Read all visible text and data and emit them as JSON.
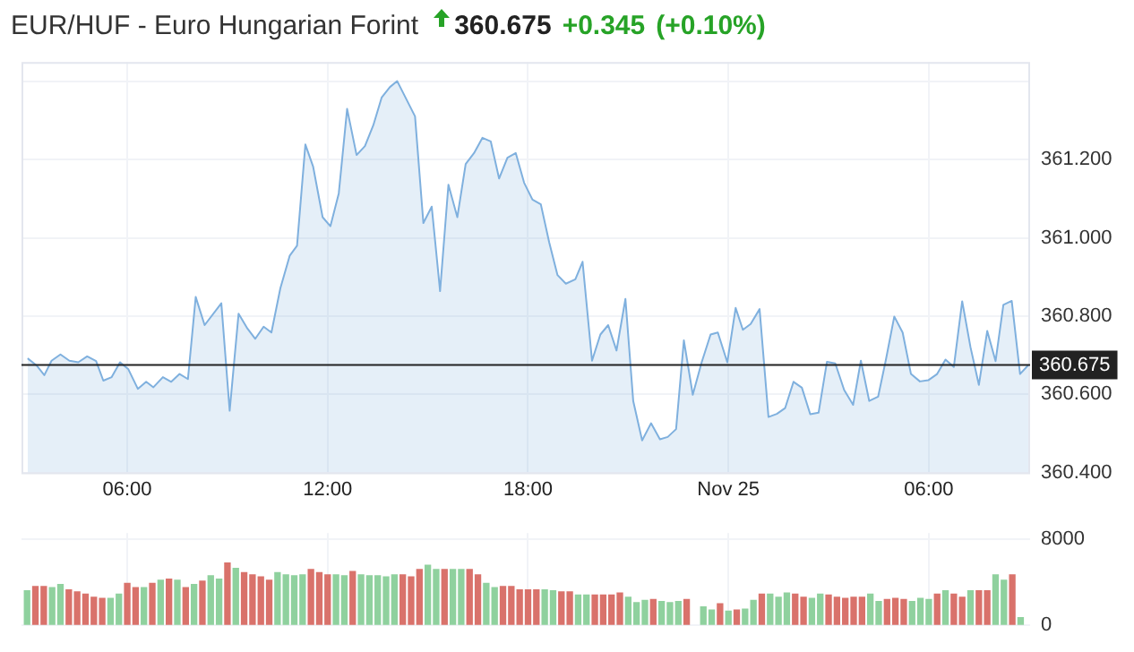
{
  "chart_data": [
    {
      "type": "area",
      "title": "EUR/HUF - Euro Hungarian Forint",
      "subtitle": "360.675",
      "annotations": [
        "+0.345",
        "(+0.10%)"
      ],
      "x": [
        "--11-24T03:01",
        "--11-24T03:17",
        "--11-24T03:31",
        "--11-24T03:44",
        "--11-24T04:00",
        "--11-24T04:16",
        "--11-24T04:32",
        "--11-24T04:48",
        "--11-24T05:04",
        "--11-24T05:17",
        "--11-24T05:32",
        "--11-24T05:47",
        "--11-24T06:02",
        "--11-24T06:19",
        "--11-24T06:34",
        "--11-24T06:47",
        "--11-24T07:04",
        "--11-24T07:19",
        "--11-24T07:34",
        "--11-24T07:49",
        "--11-24T08:03",
        "--11-24T08:19",
        "--11-24T08:49",
        "--11-24T09:04",
        "--11-24T09:20",
        "--11-24T09:36",
        "--11-24T09:50",
        "--11-24T10:05",
        "--11-24T10:19",
        "--11-24T10:35",
        "--11-24T10:52",
        "--11-24T11:05",
        "--11-24T11:20",
        "--11-24T11:34",
        "--11-24T11:51",
        "--11-24T12:05",
        "--11-24T12:20",
        "--11-24T12:35",
        "--11-24T12:52",
        "--11-24T13:07",
        "--11-24T13:22",
        "--11-24T13:37",
        "--11-24T13:52",
        "--11-24T14:05",
        "--11-24T14:37",
        "--11-24T14:52",
        "--11-24T15:07",
        "--11-24T15:22",
        "--11-24T15:37",
        "--11-24T15:53",
        "--11-24T16:08",
        "--11-24T16:23",
        "--11-24T16:38",
        "--11-24T16:53",
        "--11-24T17:08",
        "--11-24T17:23",
        "--11-24T17:38",
        "--11-24T17:53",
        "--11-24T18:08",
        "--11-24T18:23",
        "--11-24T18:38",
        "--11-24T18:53",
        "--11-24T19:08",
        "--11-24T19:25",
        "--11-24T19:38",
        "--11-24T19:55",
        "--11-24T20:10",
        "--11-24T20:24",
        "--11-24T20:39",
        "--11-24T20:55",
        "--11-24T21:09",
        "--11-24T21:25",
        "--11-24T21:41",
        "--11-24T21:57",
        "--11-24T22:11",
        "--11-24T22:26",
        "--11-24T22:40",
        "--11-24T22:56",
        "--11-24T23:12",
        "--11-24T23:28",
        "--11-24T23:41",
        "--11-24T23:58",
        "--11-25T00:13",
        "--11-25T00:26",
        "--11-25T00:40",
        "--11-25T00:56",
        "--11-25T01:12",
        "--11-25T01:27",
        "--11-25T01:42",
        "--11-25T01:57",
        "--11-25T02:12",
        "--11-25T02:27",
        "--11-25T02:42",
        "--11-25T02:57",
        "--11-25T03:12",
        "--11-25T03:28",
        "--11-25T03:44",
        "--11-25T03:58",
        "--11-25T04:13",
        "--11-25T04:29",
        "--11-25T04:43",
        "--11-25T04:58",
        "--11-25T05:13",
        "--11-25T05:28",
        "--11-25T05:44",
        "--11-25T05:59",
        "--11-25T06:15",
        "--11-25T06:30",
        "--11-25T06:45",
        "--11-25T07:00",
        "--11-25T07:15",
        "--11-25T07:30",
        "--11-25T07:45",
        "--11-25T08:00",
        "--11-25T08:14",
        "--11-25T08:29",
        "--11-25T08:44",
        "--11-25T08:59"
      ],
      "series": [
        {
          "color": "#7fb0de",
          "values": [
            360.692,
            360.674,
            360.649,
            360.686,
            360.702,
            360.686,
            360.682,
            360.697,
            360.685,
            360.635,
            360.644,
            360.682,
            360.664,
            360.614,
            360.632,
            360.618,
            360.644,
            360.632,
            360.652,
            360.639,
            360.849,
            360.777,
            360.833,
            360.558,
            360.806,
            360.768,
            360.742,
            360.773,
            360.758,
            360.871,
            360.955,
            360.98,
            361.239,
            361.182,
            361.053,
            361.03,
            361.114,
            361.33,
            361.212,
            361.235,
            361.288,
            361.359,
            361.386,
            361.401,
            361.311,
            361.038,
            361.08,
            360.864,
            361.136,
            361.053,
            361.189,
            361.217,
            361.256,
            361.247,
            361.152,
            361.205,
            361.217,
            361.141,
            361.098,
            361.086,
            360.989,
            360.905,
            360.883,
            360.894,
            360.939,
            360.686,
            360.753,
            360.777,
            360.712,
            360.844,
            360.583,
            360.482,
            360.526,
            360.485,
            360.491,
            360.511,
            360.738,
            360.599,
            360.682,
            360.753,
            360.758,
            360.682,
            360.821,
            360.765,
            360.78,
            360.818,
            360.542,
            360.55,
            360.565,
            360.632,
            360.617,
            360.549,
            360.553,
            360.683,
            360.679,
            360.611,
            360.573,
            360.686,
            360.583,
            360.594,
            360.689,
            360.799,
            360.758,
            360.652,
            360.633,
            360.636,
            360.652,
            360.689,
            360.67,
            360.838,
            360.72,
            360.624,
            360.762,
            360.685,
            360.829,
            360.839,
            360.652,
            360.675
          ]
        }
      ],
      "xlim": [
        "--11-24T02:50",
        "--11-25T09:02"
      ],
      "xticks": [
        {
          "value": "--11-24T06:00",
          "label": "06:00"
        },
        {
          "value": "--11-24T12:00",
          "label": "12:00"
        },
        {
          "value": "--11-24T18:00",
          "label": "18:00"
        },
        {
          "value": "--11-25T00:00",
          "label": "Nov 25"
        },
        {
          "value": "--11-25T06:00",
          "label": "06:00"
        }
      ],
      "ylim": [
        360.4,
        361.45
      ],
      "yticks": [
        {
          "value": 360.4,
          "label": "360.400"
        },
        {
          "value": 360.6,
          "label": "360.600"
        },
        {
          "value": 360.8,
          "label": "360.800"
        },
        {
          "value": 361.0,
          "label": "361.000"
        },
        {
          "value": 361.2,
          "label": "361.200"
        },
        {
          "value": 361.4,
          "label": null
        }
      ],
      "grid": true,
      "ref_lines": [
        {
          "axis": "y",
          "value": 360.675,
          "label": "360.675",
          "color": "#222222"
        }
      ]
    },
    {
      "type": "bar",
      "x": [
        "--11-24T03:00",
        "--11-24T03:15",
        "--11-24T03:30",
        "--11-24T03:45",
        "--11-24T04:00",
        "--11-24T04:15",
        "--11-24T04:30",
        "--11-24T04:45",
        "--11-24T05:00",
        "--11-24T05:15",
        "--11-24T05:30",
        "--11-24T05:45",
        "--11-24T06:00",
        "--11-24T06:15",
        "--11-24T06:30",
        "--11-24T06:45",
        "--11-24T07:00",
        "--11-24T07:15",
        "--11-24T07:30",
        "--11-24T07:45",
        "--11-24T08:00",
        "--11-24T08:15",
        "--11-24T08:30",
        "--11-24T08:45",
        "--11-24T09:00",
        "--11-24T09:15",
        "--11-24T09:30",
        "--11-24T09:45",
        "--11-24T10:00",
        "--11-24T10:15",
        "--11-24T10:30",
        "--11-24T10:45",
        "--11-24T11:00",
        "--11-24T11:15",
        "--11-24T11:30",
        "--11-24T11:45",
        "--11-24T12:00",
        "--11-24T12:15",
        "--11-24T12:30",
        "--11-24T12:45",
        "--11-24T13:00",
        "--11-24T13:15",
        "--11-24T13:30",
        "--11-24T13:45",
        "--11-24T14:00",
        "--11-24T14:15",
        "--11-24T14:30",
        "--11-24T14:45",
        "--11-24T15:00",
        "--11-24T15:15",
        "--11-24T15:30",
        "--11-24T15:45",
        "--11-24T16:00",
        "--11-24T16:15",
        "--11-24T16:30",
        "--11-24T16:45",
        "--11-24T17:00",
        "--11-24T17:15",
        "--11-24T17:30",
        "--11-24T17:45",
        "--11-24T18:00",
        "--11-24T18:15",
        "--11-24T18:30",
        "--11-24T18:45",
        "--11-24T19:00",
        "--11-24T19:15",
        "--11-24T19:30",
        "--11-24T19:45",
        "--11-24T20:00",
        "--11-24T20:15",
        "--11-24T20:30",
        "--11-24T20:45",
        "--11-24T21:00",
        "--11-24T21:15",
        "--11-24T21:30",
        "--11-24T21:45",
        "--11-24T22:00",
        "--11-24T22:15",
        "--11-24T22:30",
        "--11-24T22:45",
        "--11-24T23:00",
        "--11-24T23:15",
        "--11-24T23:30",
        "--11-24T23:45",
        "--11-25T00:00",
        "--11-25T00:15",
        "--11-25T00:30",
        "--11-25T00:45",
        "--11-25T01:00",
        "--11-25T01:15",
        "--11-25T01:30",
        "--11-25T01:45",
        "--11-25T02:00",
        "--11-25T02:15",
        "--11-25T02:30",
        "--11-25T02:45",
        "--11-25T03:00",
        "--11-25T03:15",
        "--11-25T03:30",
        "--11-25T03:45",
        "--11-25T04:00",
        "--11-25T04:15",
        "--11-25T04:30",
        "--11-25T04:45",
        "--11-25T05:00",
        "--11-25T05:15",
        "--11-25T05:30",
        "--11-25T05:45",
        "--11-25T06:00",
        "--11-25T06:15",
        "--11-25T06:30",
        "--11-25T06:45",
        "--11-25T07:00",
        "--11-25T07:15",
        "--11-25T07:30",
        "--11-25T07:45",
        "--11-25T08:00",
        "--11-25T08:15",
        "--11-25T08:30",
        "--11-25T08:45"
      ],
      "values": [
        3200,
        3600,
        3600,
        3500,
        3800,
        3300,
        3100,
        2900,
        2600,
        2500,
        2500,
        2900,
        3900,
        3500,
        3500,
        3900,
        4200,
        4300,
        4200,
        3500,
        3800,
        4100,
        4600,
        4300,
        5800,
        5300,
        4900,
        4700,
        4500,
        4200,
        4900,
        4700,
        4600,
        4700,
        5200,
        4900,
        4700,
        4700,
        4600,
        5000,
        4700,
        4600,
        4600,
        4500,
        4700,
        4700,
        4500,
        5200,
        5600,
        5200,
        5200,
        5200,
        5200,
        5200,
        4700,
        3900,
        3500,
        3600,
        3600,
        3300,
        3300,
        3300,
        3300,
        3200,
        3100,
        3100,
        2800,
        2800,
        2800,
        2800,
        2800,
        3000,
        2600,
        2100,
        2300,
        2400,
        2200,
        2100,
        2200,
        2400,
        null,
        1700,
        1400,
        2000,
        1300,
        1400,
        1500,
        2300,
        2900,
        2900,
        2600,
        3000,
        2900,
        2600,
        2500,
        2900,
        2800,
        2600,
        2500,
        2600,
        2600,
        2900,
        2200,
        2400,
        2500,
        2400,
        2200,
        2500,
        2400,
        2900,
        3200,
        2900,
        2600,
        3200,
        3200,
        3200,
        4700,
        4200,
        4700,
        700
      ],
      "colors": [
        "#8fd19e",
        "#d9726b",
        "#d9726b",
        "#8fd19e",
        "#8fd19e",
        "#d9726b",
        "#d9726b",
        "#d9726b",
        "#d9726b",
        "#d9726b",
        "#8fd19e",
        "#8fd19e",
        "#d9726b",
        "#d9726b",
        "#8fd19e",
        "#d9726b",
        "#8fd19e",
        "#d9726b",
        "#8fd19e",
        "#d9726b",
        "#8fd19e",
        "#d9726b",
        "#8fd19e",
        "#8fd19e",
        "#d9726b",
        "#8fd19e",
        "#d9726b",
        "#d9726b",
        "#d9726b",
        "#d9726b",
        "#8fd19e",
        "#8fd19e",
        "#8fd19e",
        "#8fd19e",
        "#d9726b",
        "#d9726b",
        "#d9726b",
        "#8fd19e",
        "#8fd19e",
        "#d9726b",
        "#8fd19e",
        "#8fd19e",
        "#8fd19e",
        "#8fd19e",
        "#8fd19e",
        "#d9726b",
        "#d9726b",
        "#d9726b",
        "#8fd19e",
        "#8fd19e",
        "#d9726b",
        "#8fd19e",
        "#8fd19e",
        "#d9726b",
        "#d9726b",
        "#8fd19e",
        "#8fd19e",
        "#d9726b",
        "#d9726b",
        "#d9726b",
        "#d9726b",
        "#d9726b",
        "#8fd19e",
        "#8fd19e",
        "#d9726b",
        "#d9726b",
        "#8fd19e",
        "#8fd19e",
        "#d9726b",
        "#d9726b",
        "#d9726b",
        "#d9726b",
        "#8fd19e",
        "#8fd19e",
        "#8fd19e",
        "#d9726b",
        "#8fd19e",
        "#8fd19e",
        "#8fd19e",
        "#d9726b",
        "#8fd19e",
        "#8fd19e",
        "#8fd19e",
        "#d9726b",
        "#8fd19e",
        "#d9726b",
        "#8fd19e",
        "#8fd19e",
        "#d9726b",
        "#8fd19e",
        "#8fd19e",
        "#8fd19e",
        "#d9726b",
        "#d9726b",
        "#8fd19e",
        "#8fd19e",
        "#d9726b",
        "#d9726b",
        "#d9726b",
        "#d9726b",
        "#d9726b",
        "#8fd19e",
        "#8fd19e",
        "#d9726b",
        "#d9726b",
        "#d9726b",
        "#8fd19e",
        "#8fd19e",
        "#8fd19e",
        "#d9726b",
        "#8fd19e",
        "#d9726b",
        "#d9726b",
        "#8fd19e",
        "#d9726b",
        "#d9726b",
        "#8fd19e",
        "#8fd19e",
        "#d9726b",
        "#8fd19e"
      ],
      "xlim": [
        "--11-24T02:50",
        "--11-25T09:02"
      ],
      "xticks": [
        {
          "value": "--11-24T06:00",
          "label": null
        },
        {
          "value": "--11-24T12:00",
          "label": null
        },
        {
          "value": "--11-24T18:00",
          "label": null
        },
        {
          "value": "--11-25T00:00",
          "label": null
        },
        {
          "value": "--11-25T06:00",
          "label": null
        }
      ],
      "ylim": [
        0,
        8600
      ],
      "yticks": [
        0,
        8000
      ],
      "grid": true,
      "tick_labels": "y"
    }
  ]
}
